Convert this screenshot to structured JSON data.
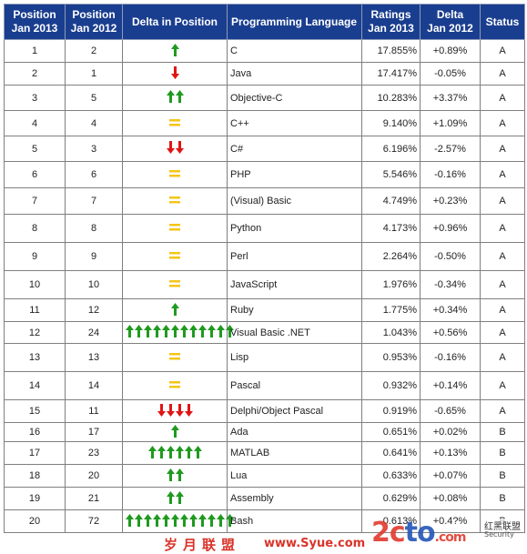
{
  "colors": {
    "header_bg": "#1a3e8f",
    "arrow_up": "#1f9a1f",
    "arrow_down": "#e01515",
    "equal": "#f5c518",
    "lang_link": "#1b2f95"
  },
  "headers": {
    "pos2013": "Position\nJan 2013",
    "pos2012": "Position\nJan 2012",
    "delta_pos": "Delta in Position",
    "language": "Programming Language",
    "ratings": "Ratings\nJan 2013",
    "delta": "Delta\nJan 2012",
    "status": "Status"
  },
  "rows": [
    {
      "pos2013": "1",
      "pos2012": "2",
      "language": "C",
      "ratings": "17.855%",
      "delta": "+0.89%",
      "status": "A",
      "dir": "up",
      "count": 1
    },
    {
      "pos2013": "2",
      "pos2012": "1",
      "language": "Java",
      "ratings": "17.417%",
      "delta": "-0.05%",
      "status": "A",
      "dir": "down",
      "count": 1
    },
    {
      "pos2013": "3",
      "pos2012": "5",
      "language": "Objective-C",
      "ratings": "10.283%",
      "delta": "+3.37%",
      "status": "A",
      "dir": "up",
      "count": 2
    },
    {
      "pos2013": "4",
      "pos2012": "4",
      "language": "C++",
      "ratings": "9.140%",
      "delta": "+1.09%",
      "status": "A",
      "dir": "eq",
      "count": 1
    },
    {
      "pos2013": "5",
      "pos2012": "3",
      "language": "C#",
      "ratings": "6.196%",
      "delta": "-2.57%",
      "status": "A",
      "dir": "down",
      "count": 2
    },
    {
      "pos2013": "6",
      "pos2012": "6",
      "language": "PHP",
      "ratings": "5.546%",
      "delta": "-0.16%",
      "status": "A",
      "dir": "eq",
      "count": 1
    },
    {
      "pos2013": "7",
      "pos2012": "7",
      "language": "(Visual) Basic",
      "ratings": "4.749%",
      "delta": "+0.23%",
      "status": "A",
      "dir": "eq",
      "count": 1
    },
    {
      "pos2013": "8",
      "pos2012": "8",
      "language": "Python",
      "ratings": "4.173%",
      "delta": "+0.96%",
      "status": "A",
      "dir": "eq",
      "count": 1
    },
    {
      "pos2013": "9",
      "pos2012": "9",
      "language": "Perl",
      "ratings": "2.264%",
      "delta": "-0.50%",
      "status": "A",
      "dir": "eq",
      "count": 1
    },
    {
      "pos2013": "10",
      "pos2012": "10",
      "language": "JavaScript",
      "ratings": "1.976%",
      "delta": "-0.34%",
      "status": "A",
      "dir": "eq",
      "count": 1
    },
    {
      "pos2013": "11",
      "pos2012": "12",
      "language": "Ruby",
      "ratings": "1.775%",
      "delta": "+0.34%",
      "status": "A",
      "dir": "up",
      "count": 1
    },
    {
      "pos2013": "12",
      "pos2012": "24",
      "language": "Visual Basic .NET",
      "ratings": "1.043%",
      "delta": "+0.56%",
      "status": "A",
      "dir": "up",
      "count": 12
    },
    {
      "pos2013": "13",
      "pos2012": "13",
      "language": "Lisp",
      "ratings": "0.953%",
      "delta": "-0.16%",
      "status": "A",
      "dir": "eq",
      "count": 1
    },
    {
      "pos2013": "14",
      "pos2012": "14",
      "language": "Pascal",
      "ratings": "0.932%",
      "delta": "+0.14%",
      "status": "A",
      "dir": "eq",
      "count": 1
    },
    {
      "pos2013": "15",
      "pos2012": "11",
      "language": "Delphi/Object Pascal",
      "ratings": "0.919%",
      "delta": "-0.65%",
      "status": "A",
      "dir": "down",
      "count": 4
    },
    {
      "pos2013": "16",
      "pos2012": "17",
      "language": "Ada",
      "ratings": "0.651%",
      "delta": "+0.02%",
      "status": "B",
      "dir": "up",
      "count": 1
    },
    {
      "pos2013": "17",
      "pos2012": "23",
      "language": "MATLAB",
      "ratings": "0.641%",
      "delta": "+0.13%",
      "status": "B",
      "dir": "up",
      "count": 6
    },
    {
      "pos2013": "18",
      "pos2012": "20",
      "language": "Lua",
      "ratings": "0.633%",
      "delta": "+0.07%",
      "status": "B",
      "dir": "up",
      "count": 2
    },
    {
      "pos2013": "19",
      "pos2012": "21",
      "language": "Assembly",
      "ratings": "0.629%",
      "delta": "+0.08%",
      "status": "B",
      "dir": "up",
      "count": 2
    },
    {
      "pos2013": "20",
      "pos2012": "72",
      "language": "Bash",
      "ratings": "0.613%",
      "delta": "+0.4?%",
      "status": "B",
      "dir": "up",
      "count": 12
    }
  ],
  "watermark": {
    "cn_left": "岁月联盟",
    "url": "www.Syue.com",
    "logo_red": "2c",
    "logo_blue": "to",
    "logo_end": ".com",
    "side_cn": "红黑联盟",
    "side_url": "Security"
  }
}
